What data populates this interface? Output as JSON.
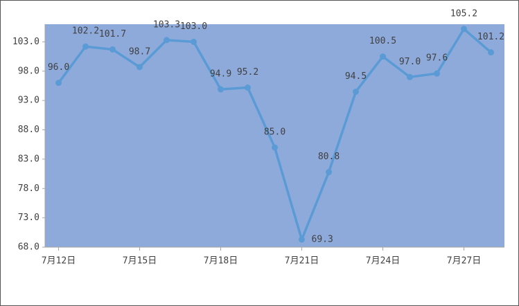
{
  "chart_data": {
    "type": "line",
    "categories": [
      "7月12日",
      null,
      null,
      "7月15日",
      null,
      null,
      "7月18日",
      null,
      null,
      "7月21日",
      null,
      null,
      "7月24日",
      null,
      null,
      "7月27日",
      null
    ],
    "series": [
      {
        "color": "#5b9bd5",
        "values": [
          96.0,
          102.2,
          101.7,
          98.7,
          103.3,
          103.0,
          94.9,
          95.2,
          85.0,
          69.3,
          80.8,
          94.5,
          100.5,
          97.0,
          97.6,
          105.2,
          101.2
        ],
        "value_labels": [
          "96.0",
          "102.2",
          "101.7",
          "98.7",
          "103.3",
          "103.0",
          "94.9",
          "95.2",
          "85.0",
          "69.3",
          "80.8",
          "94.5",
          "100.5",
          "97.0",
          "97.6",
          "105.2",
          "101.2"
        ]
      }
    ],
    "ylim": [
      68,
      106
    ],
    "yticks": [
      {
        "value": 68,
        "label": "68.0"
      },
      {
        "value": 73,
        "label": "73.0"
      },
      {
        "value": 78,
        "label": "78.0"
      },
      {
        "value": 83,
        "label": "83.0"
      },
      {
        "value": 88,
        "label": "88.0"
      },
      {
        "value": 93,
        "label": "93.0"
      },
      {
        "value": 98,
        "label": "98.0"
      },
      {
        "value": 103,
        "label": "103.0"
      }
    ],
    "plot_background": "#8eaadb"
  }
}
